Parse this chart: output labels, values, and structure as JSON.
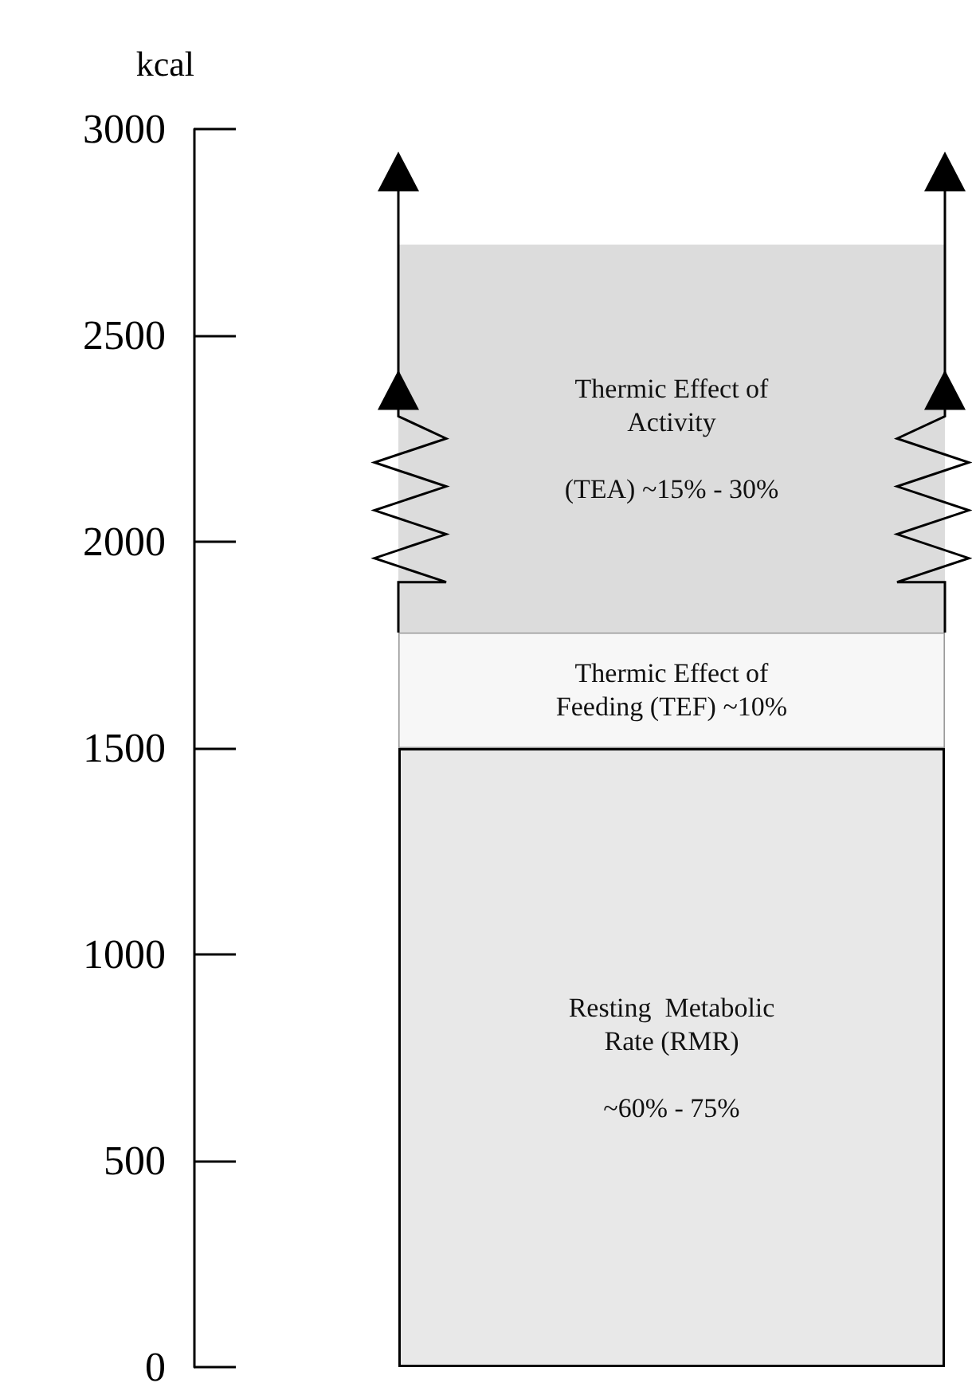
{
  "chart_data": {
    "type": "bar",
    "ylabel": "kcal",
    "categories": [
      null
    ],
    "stacked": true,
    "series": [
      {
        "name": "Resting  Metabolic\nRate (RMR)\n\n~60% - 75%",
        "color": "#e8e8e8",
        "values": [
          1500
        ]
      },
      {
        "name": "Thermic Effect of\nFeeding (TEF) ~10%",
        "color": "#f7f7f7",
        "values": [
          280
        ]
      },
      {
        "name": "Thermic Effect of\nActivity\n\n(TEA) ~15% - 30%",
        "color": "#dcdcdc",
        "values": [
          940
        ]
      }
    ],
    "ylim": [
      0,
      3000
    ],
    "yticks": [
      0,
      500,
      1000,
      1500,
      2000,
      2500,
      3000
    ],
    "grid": false,
    "legend": false
  }
}
